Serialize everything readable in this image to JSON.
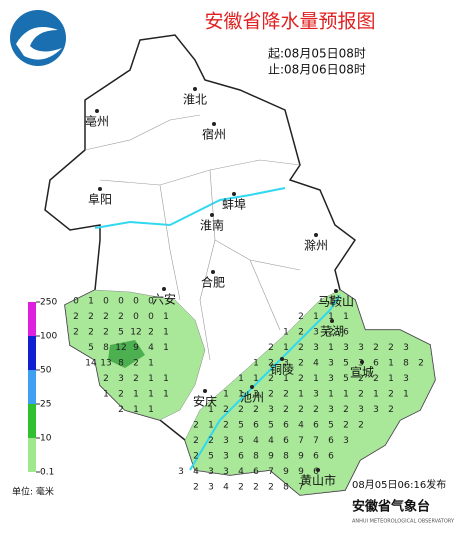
{
  "title": "安徽省降水量预报图",
  "start_time": "起:08月05日08时",
  "end_time": "止:08月06日08时",
  "cities": [
    "淮北",
    "宿州",
    "亳州",
    "阜阳",
    "蚌埠",
    "淮南",
    "滁州",
    "合肥",
    "六安",
    "马鞍山",
    "芜湖",
    "铜陵",
    "宣城",
    "安庆",
    "池州",
    "黄山市"
  ],
  "legend": {
    "ticks": [
      250,
      100,
      50,
      25,
      10,
      0.1
    ],
    "colors": [
      "#e020e0",
      "#1020d0",
      "#40a0f0",
      "#30c030",
      "#a0e890"
    ],
    "unit": "单位: 毫米"
  },
  "issued": "08月05日06:16发布",
  "publisher": "安徽省气象台",
  "publisher_en": "ANHUI METEOROLOGICAL OBSERVATORY",
  "rain_grid": [
    [
      0,
      1,
      0,
      0,
      0,
      0,
      null,
      null,
      null,
      null,
      null,
      null,
      null,
      null,
      null,
      null,
      null,
      1,
      null,
      null,
      null,
      null,
      null,
      null
    ],
    [
      2,
      2,
      2,
      2,
      0,
      0,
      1,
      null,
      null,
      null,
      null,
      null,
      null,
      null,
      null,
      2,
      1,
      1,
      1,
      null,
      null,
      null,
      null,
      null
    ],
    [
      2,
      2,
      2,
      5,
      12,
      2,
      1,
      null,
      null,
      null,
      null,
      null,
      null,
      null,
      1,
      2,
      3,
      2,
      6,
      null,
      null,
      null,
      null,
      null
    ],
    [
      null,
      5,
      8,
      12,
      9,
      4,
      1,
      null,
      null,
      null,
      null,
      null,
      null,
      2,
      1,
      2,
      3,
      1,
      3,
      3,
      2,
      2,
      3,
      null
    ],
    [
      null,
      14,
      13,
      8,
      2,
      1,
      null,
      null,
      null,
      null,
      null,
      null,
      1,
      2,
      3,
      2,
      4,
      3,
      5,
      3,
      6,
      1,
      8,
      2
    ],
    [
      null,
      null,
      2,
      3,
      2,
      1,
      1,
      null,
      null,
      null,
      null,
      1,
      1,
      2,
      1,
      2,
      1,
      3,
      5,
      2,
      2,
      1,
      3,
      null
    ],
    [
      null,
      null,
      1,
      2,
      1,
      1,
      1,
      null,
      null,
      null,
      1,
      1,
      3,
      2,
      2,
      1,
      3,
      1,
      1,
      2,
      1,
      2,
      1,
      null
    ],
    [
      null,
      null,
      null,
      2,
      1,
      1,
      null,
      null,
      null,
      1,
      2,
      2,
      2,
      3,
      2,
      2,
      2,
      3,
      2,
      3,
      3,
      2,
      null,
      null
    ],
    [
      null,
      null,
      null,
      null,
      null,
      null,
      null,
      null,
      2,
      1,
      2,
      5,
      6,
      5,
      6,
      4,
      6,
      5,
      2,
      2,
      null,
      null,
      null,
      null
    ],
    [
      null,
      null,
      null,
      null,
      null,
      null,
      null,
      null,
      2,
      2,
      3,
      5,
      4,
      4,
      6,
      7,
      7,
      6,
      3,
      null,
      null,
      null,
      null,
      null
    ],
    [
      null,
      null,
      null,
      null,
      null,
      null,
      null,
      null,
      2,
      5,
      3,
      6,
      8,
      9,
      8,
      9,
      6,
      6,
      null,
      null,
      null,
      null,
      null,
      null
    ],
    [
      null,
      null,
      null,
      null,
      null,
      null,
      null,
      3,
      4,
      3,
      3,
      4,
      6,
      7,
      9,
      9,
      6,
      null,
      null,
      null,
      null,
      null,
      null,
      null
    ],
    [
      null,
      null,
      null,
      null,
      null,
      null,
      null,
      null,
      2,
      3,
      4,
      2,
      2,
      2,
      8,
      7,
      null,
      null,
      null,
      null,
      null,
      null,
      null,
      null
    ]
  ]
}
